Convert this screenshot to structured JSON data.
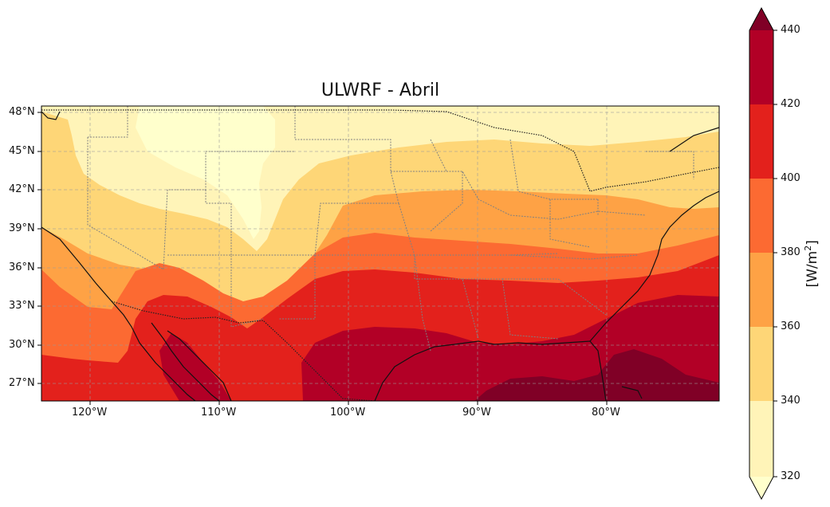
{
  "title": "ULWRF - Abril",
  "lat_labels": [
    "48°N",
    "45°N",
    "42°N",
    "39°N",
    "36°N",
    "33°N",
    "30°N",
    "27°N"
  ],
  "lon_labels": [
    "120°W",
    "110°W",
    "100°W",
    "90°W",
    "80°W"
  ],
  "colorbar": {
    "label_main": "[W/m",
    "label_sup": "2",
    "label_end": "]",
    "ticks": [
      "320",
      "340",
      "360",
      "380",
      "400",
      "420",
      "440"
    ],
    "levels": [
      320,
      340,
      360,
      380,
      400,
      420,
      440
    ],
    "colors": [
      "#fff4b8",
      "#fed677",
      "#fea245",
      "#fc6a32",
      "#e3211c",
      "#b20026"
    ],
    "under_color": "#ffffcc",
    "over_color": "#800026",
    "extend": "both"
  },
  "map": {
    "extent": {
      "lon_min": -124,
      "lon_max": -71.5,
      "lat_min": 25.8,
      "lat_max": 48.5
    },
    "gridlines": true,
    "grid_style": "dashed",
    "features": [
      "coastlines",
      "country borders",
      "state borders"
    ]
  }
}
